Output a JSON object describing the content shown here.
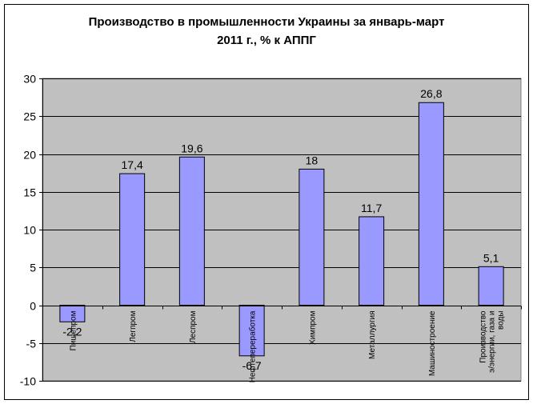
{
  "chart_data": {
    "type": "bar",
    "title_lines": [
      "Производство в промышленности Украины за январь-март",
      "2011 г., % к АППГ"
    ],
    "categories": [
      "Пищепром",
      "Легпром",
      "Леспром",
      "Нефтепереработка",
      "Химпром",
      "Металлургия",
      "Машиностроение",
      "Производство э/энергии, газа и воды"
    ],
    "category_lines": [
      [
        "Пищепром"
      ],
      [
        "Легпром"
      ],
      [
        "Леспром"
      ],
      [
        "Нефтепереработка"
      ],
      [
        "Химпром"
      ],
      [
        "Металлургия"
      ],
      [
        "Машиностроение"
      ],
      [
        "Производство",
        "э/энергии, газа и",
        "воды"
      ]
    ],
    "values": [
      -2.2,
      17.4,
      19.6,
      -6.7,
      18,
      11.7,
      26.8,
      5.1
    ],
    "data_labels": [
      "-2,2",
      "17,4",
      "19,6",
      "-6,7",
      "18",
      "11,7",
      "26,8",
      "5,1"
    ],
    "yticks": [
      "-10",
      "-5",
      "0",
      "5",
      "10",
      "15",
      "20",
      "25",
      "30"
    ],
    "ylim": [
      -10,
      30
    ],
    "grid": true,
    "legend": "none",
    "colors": {
      "bar": "#9999ff",
      "plot_bg": "#c0c0c0",
      "grid": "#000000"
    }
  }
}
